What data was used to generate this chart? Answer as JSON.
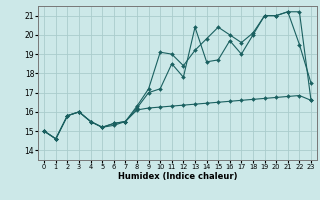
{
  "title": "",
  "xlabel": "Humidex (Indice chaleur)",
  "bg_color": "#cce8e8",
  "grid_color": "#aacccc",
  "line_color": "#1a6060",
  "xlim": [
    -0.5,
    23.5
  ],
  "ylim": [
    13.5,
    21.5
  ],
  "xticks": [
    0,
    1,
    2,
    3,
    4,
    5,
    6,
    7,
    8,
    9,
    10,
    11,
    12,
    13,
    14,
    15,
    16,
    17,
    18,
    19,
    20,
    21,
    22,
    23
  ],
  "yticks": [
    14,
    15,
    16,
    17,
    18,
    19,
    20,
    21
  ],
  "line1_x": [
    0,
    1,
    2,
    3,
    4,
    5,
    6,
    7,
    8,
    9,
    10,
    11,
    12,
    13,
    14,
    15,
    16,
    17,
    18,
    19,
    20,
    21,
    22,
    23
  ],
  "line1_y": [
    15.0,
    14.6,
    15.8,
    16.0,
    15.5,
    15.2,
    15.3,
    15.5,
    16.1,
    16.2,
    16.25,
    16.3,
    16.35,
    16.4,
    16.45,
    16.5,
    16.55,
    16.6,
    16.65,
    16.7,
    16.75,
    16.8,
    16.85,
    16.6
  ],
  "line2_x": [
    0,
    1,
    2,
    3,
    4,
    5,
    6,
    7,
    8,
    9,
    10,
    11,
    12,
    13,
    14,
    15,
    16,
    17,
    18,
    19,
    20,
    21,
    22,
    23
  ],
  "line2_y": [
    15.0,
    14.6,
    15.8,
    16.0,
    15.5,
    15.2,
    15.4,
    15.5,
    16.2,
    17.0,
    17.2,
    18.5,
    17.8,
    20.4,
    18.6,
    18.7,
    19.7,
    19.0,
    20.0,
    21.0,
    21.0,
    21.2,
    19.5,
    17.5
  ],
  "line3_x": [
    0,
    1,
    2,
    3,
    4,
    5,
    6,
    7,
    8,
    9,
    10,
    11,
    12,
    13,
    14,
    15,
    16,
    17,
    18,
    19,
    20,
    21,
    22,
    23
  ],
  "line3_y": [
    15.0,
    14.6,
    15.8,
    16.0,
    15.5,
    15.2,
    15.4,
    15.5,
    16.3,
    17.2,
    19.1,
    19.0,
    18.4,
    19.2,
    19.8,
    20.4,
    20.0,
    19.6,
    20.1,
    21.0,
    21.0,
    21.2,
    21.2,
    16.6
  ]
}
